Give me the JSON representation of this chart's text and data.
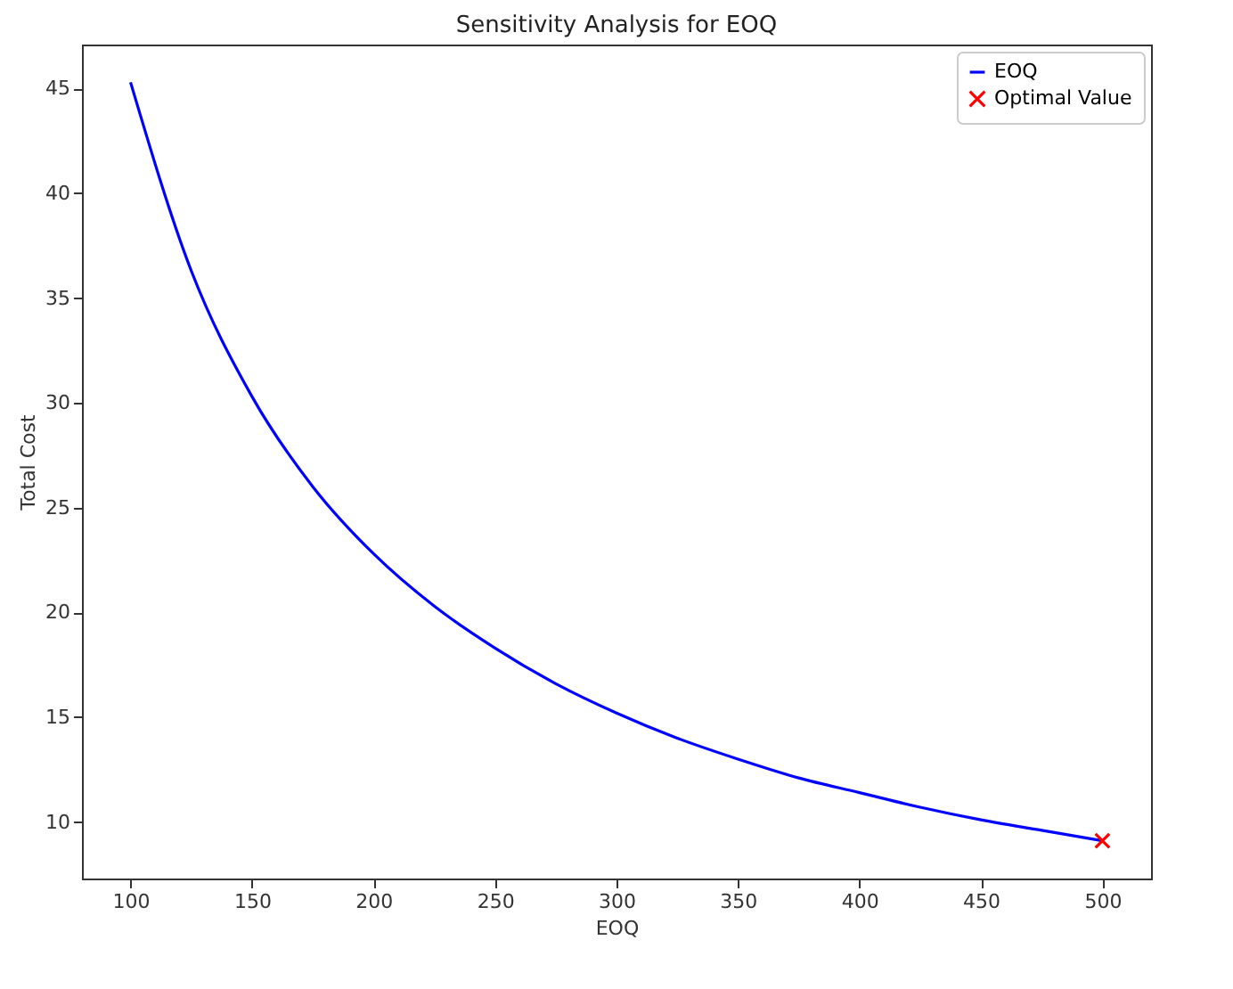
{
  "chart_data": {
    "type": "line",
    "title": "Sensitivity Analysis for EOQ",
    "xlabel": "EOQ",
    "ylabel": "Total Cost",
    "x": [
      100,
      125,
      150,
      175,
      200,
      225,
      250,
      275,
      300,
      325,
      350,
      375,
      400,
      425,
      450,
      475,
      500
    ],
    "xlim": [
      80,
      520
    ],
    "xticks": [
      100,
      150,
      200,
      250,
      300,
      350,
      400,
      450,
      500
    ],
    "ylim": [
      7.3,
      47.1
    ],
    "yticks": [
      10,
      15,
      20,
      25,
      30,
      35,
      40,
      45
    ],
    "legend": "top right",
    "series": [
      {
        "name": "EOQ",
        "marker": "none",
        "color": "#0000ff",
        "values": [
          45.3,
          36.3,
          30.3,
          26.0,
          22.8,
          20.3,
          18.3,
          16.6,
          15.2,
          14.0,
          13.0,
          12.1,
          11.4,
          10.7,
          10.1,
          9.6,
          9.1
        ]
      },
      {
        "name": "Optimal Value",
        "type": "scatter",
        "marker": "cross",
        "color": "#ff0000",
        "x": [
          500
        ],
        "values": [
          9.1
        ]
      }
    ]
  }
}
